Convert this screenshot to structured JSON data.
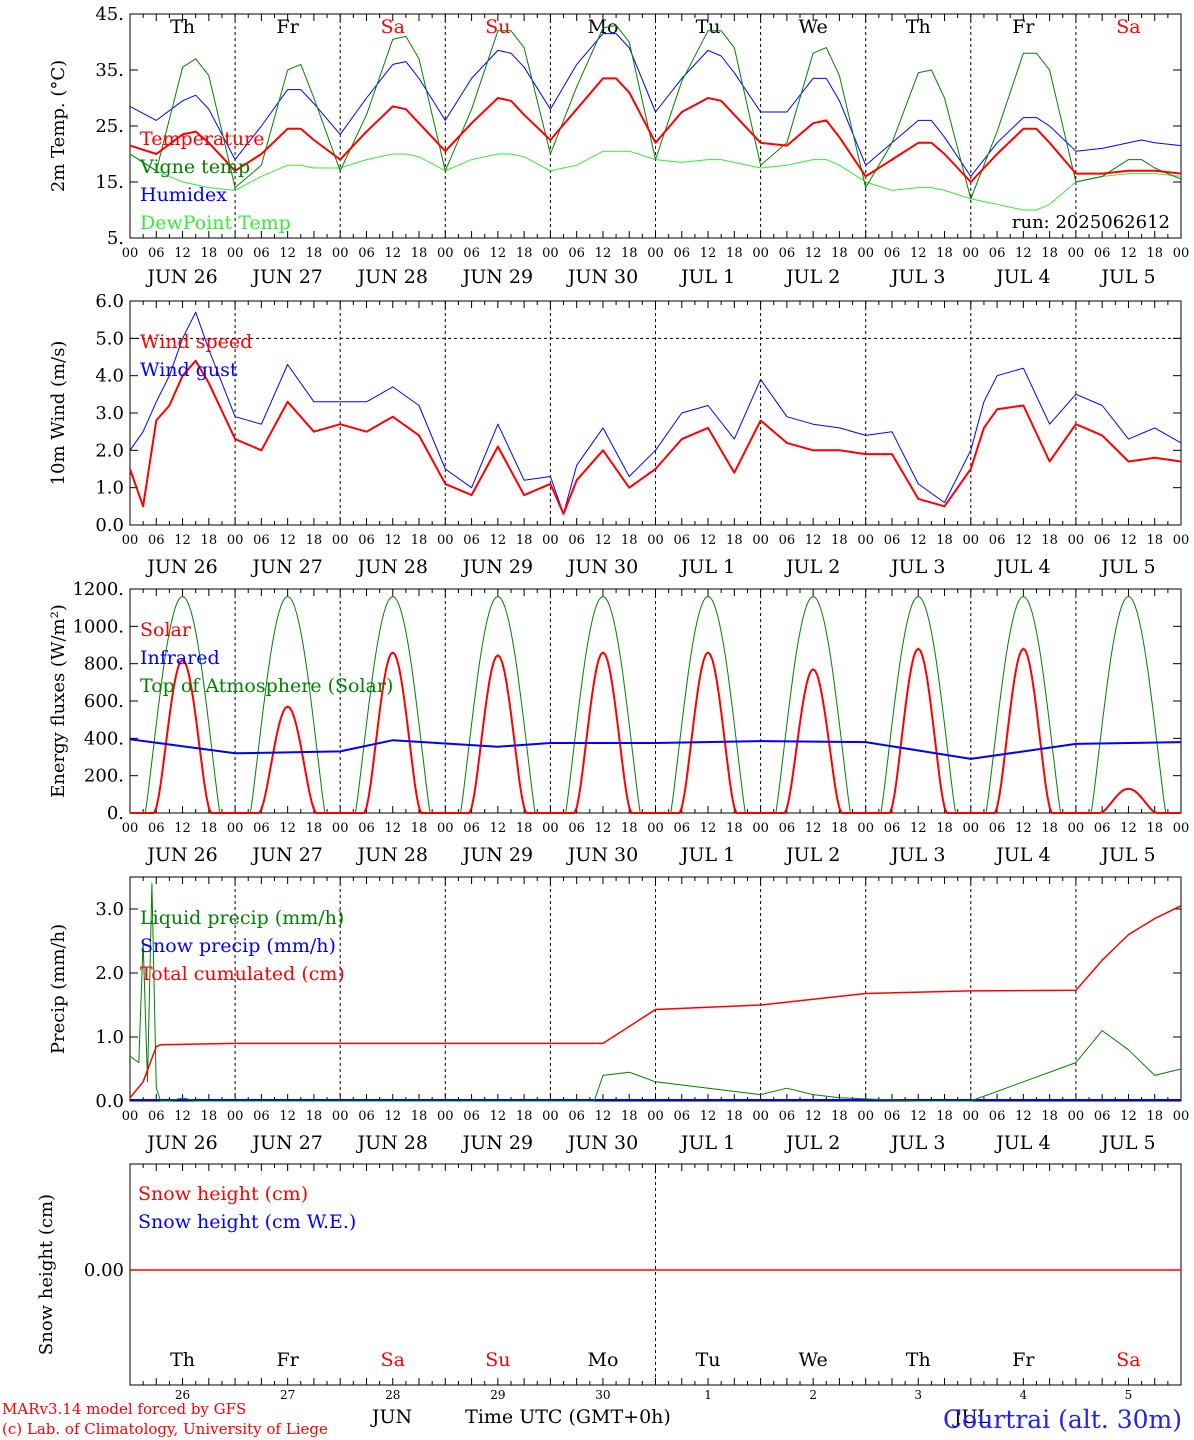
{
  "footer": {
    "credit_line1": "MARv3.14 model forced by GFS",
    "credit_line2": "(c) Lab. of Climatology, University of Liege",
    "month_label": "JUN",
    "month_label2": "JUL",
    "axis_title": "Time UTC (GMT+0h)",
    "station": "Courtrai (alt. 30m)"
  },
  "colors": {
    "red": "#ff0000",
    "green": "#008000",
    "blue": "#0000ff",
    "lightgreen": "#33ee33",
    "sat_sun": "#ff0000",
    "weekday": "#000000"
  },
  "days": {
    "names": [
      "Th",
      "Fr",
      "Sa",
      "Su",
      "Mo",
      "Tu",
      "We",
      "Th",
      "Fr",
      "Sa"
    ],
    "weekend": [
      false,
      false,
      true,
      true,
      false,
      false,
      false,
      false,
      false,
      true
    ],
    "dates": [
      "JUN 26",
      "JUN 27",
      "JUN 28",
      "JUN 29",
      "JUN 30",
      "JUL  1",
      "JUL  2",
      "JUL  3",
      "JUL  4",
      "JUL  5"
    ],
    "numbers": [
      "26",
      "27",
      "28",
      "29",
      "30",
      "1",
      "2",
      "3",
      "4",
      "5"
    ],
    "hour_ticks": [
      "00",
      "06",
      "12",
      "18"
    ]
  },
  "chart_data": [
    {
      "type": "line",
      "id": "temperature",
      "ylabel": "2m Temp. (°C)",
      "ylim": [
        5,
        45
      ],
      "yticks": [
        "5.",
        "15.",
        "25.",
        "35.",
        "45."
      ],
      "ytick_values": [
        5,
        15,
        25,
        35,
        45
      ],
      "annotation": "run: 2025062612",
      "legend": [
        "Temperature",
        "Vigne temp",
        "Humidex",
        "DewPoint Temp"
      ],
      "x_unit": "hours since JUN 26 00 UTC",
      "x": [
        0,
        6,
        12,
        15,
        18,
        24,
        30,
        36,
        39,
        42,
        48,
        54,
        60,
        63,
        66,
        72,
        78,
        84,
        87,
        90,
        96,
        102,
        108,
        111,
        114,
        120,
        126,
        132,
        135,
        138,
        144,
        150,
        156,
        159,
        162,
        168,
        174,
        180,
        183,
        186,
        192,
        198,
        204,
        207,
        210,
        216,
        222,
        228,
        231,
        234,
        240
      ],
      "series": [
        {
          "name": "Temperature",
          "color": "#ff0000",
          "width": 2,
          "values": [
            21.5,
            20,
            23.5,
            24,
            22,
            17,
            20,
            24.5,
            24.5,
            22.5,
            19,
            24,
            28.5,
            28,
            25.5,
            20.5,
            25.5,
            30,
            29.5,
            27,
            22.5,
            28,
            33.5,
            33.5,
            31,
            22,
            27.5,
            30,
            29.5,
            27,
            22,
            21.5,
            25.5,
            26,
            23,
            16,
            19,
            22,
            22,
            20,
            15,
            20,
            24.5,
            24.5,
            22,
            16.5,
            16.5,
            17,
            17,
            17,
            16.5
          ]
        },
        {
          "name": "Vigne temp",
          "color": "#008000",
          "width": 1,
          "values": [
            20,
            17,
            35.5,
            37,
            34,
            14,
            18,
            35,
            36,
            30,
            17,
            27,
            40.5,
            41,
            37,
            17,
            28,
            42,
            42,
            39,
            20,
            32,
            42.5,
            43,
            40,
            19,
            33,
            42,
            42,
            39,
            18,
            22,
            38,
            39,
            34,
            14,
            22,
            34.5,
            35,
            30,
            12,
            24,
            38,
            38,
            35,
            15,
            16,
            19,
            19,
            17.5,
            15.5
          ]
        },
        {
          "name": "Humidex",
          "color": "#0000ff",
          "width": 1,
          "values": [
            28.5,
            26,
            29.5,
            30.5,
            28,
            19,
            25,
            31.5,
            31.5,
            29,
            23.5,
            30,
            36,
            36.5,
            33.5,
            26,
            33.5,
            38.5,
            38,
            35.5,
            28,
            36,
            41.5,
            41.5,
            39,
            27.5,
            33.5,
            38.5,
            37.5,
            34.5,
            27.5,
            27.5,
            33.5,
            33.5,
            29.5,
            18,
            22,
            26,
            26,
            23,
            16,
            22,
            26.5,
            26.5,
            25,
            20.5,
            21,
            22,
            22.5,
            22,
            21.5
          ]
        },
        {
          "name": "DewPoint Temp",
          "color": "#33ee33",
          "width": 1,
          "values": [
            20,
            17,
            15,
            14.5,
            14,
            13.5,
            16,
            18,
            18,
            17.5,
            17.5,
            19,
            20,
            20,
            19.5,
            17,
            19,
            20,
            20,
            19.5,
            17,
            18,
            20.5,
            20.5,
            20.5,
            19,
            18.5,
            19,
            19,
            18.5,
            17.5,
            18,
            19,
            19,
            18,
            15,
            13.5,
            14,
            14,
            13.5,
            12,
            11,
            10,
            10,
            11,
            15,
            16,
            16.5,
            16.5,
            16.5,
            16
          ]
        }
      ]
    },
    {
      "type": "line",
      "id": "wind",
      "ylabel": "10m Wind (m/s)",
      "ylim": [
        0,
        6
      ],
      "yticks": [
        "0.0",
        "1.0",
        "2.0",
        "3.0",
        "4.0",
        "5.0",
        "6.0"
      ],
      "ytick_values": [
        0,
        1,
        2,
        3,
        4,
        5,
        6
      ],
      "reference_line": 5,
      "legend": [
        "Wind speed",
        "Wind gust"
      ],
      "x_unit": "hours since JUN 26 00 UTC",
      "x": [
        0,
        3,
        6,
        9,
        12,
        15,
        18,
        24,
        30,
        36,
        42,
        48,
        54,
        60,
        66,
        72,
        78,
        84,
        90,
        96,
        99,
        102,
        108,
        114,
        120,
        126,
        132,
        138,
        144,
        150,
        156,
        162,
        168,
        174,
        180,
        186,
        192,
        195,
        198,
        204,
        210,
        216,
        222,
        228,
        234,
        240
      ],
      "series": [
        {
          "name": "Wind speed",
          "color": "#ff0000",
          "width": 2,
          "values": [
            1.5,
            0.5,
            2.8,
            3.2,
            4,
            4.4,
            3.8,
            2.3,
            2.0,
            3.3,
            2.5,
            2.7,
            2.5,
            2.9,
            2.4,
            1.1,
            0.8,
            2.1,
            0.8,
            1.1,
            0.3,
            1.2,
            2.0,
            1.0,
            1.5,
            2.3,
            2.6,
            1.4,
            2.8,
            2.2,
            2.0,
            2.0,
            1.9,
            1.9,
            0.7,
            0.5,
            1.5,
            2.6,
            3.1,
            3.2,
            1.7,
            2.7,
            2.4,
            1.7,
            1.8,
            1.7
          ]
        },
        {
          "name": "Wind gust",
          "color": "#0000ff",
          "width": 1,
          "values": [
            2.0,
            2.5,
            3.3,
            4.0,
            5.0,
            5.7,
            4.7,
            2.9,
            2.7,
            4.3,
            3.3,
            3.3,
            3.3,
            3.7,
            3.2,
            1.5,
            1.0,
            2.7,
            1.2,
            1.3,
            0.3,
            1.6,
            2.6,
            1.3,
            2.0,
            3.0,
            3.2,
            2.3,
            3.9,
            2.9,
            2.7,
            2.6,
            2.4,
            2.5,
            1.1,
            0.6,
            2.0,
            3.3,
            4.0,
            4.2,
            2.7,
            3.5,
            3.2,
            2.3,
            2.6,
            2.2
          ]
        }
      ]
    },
    {
      "type": "line",
      "id": "energy",
      "ylabel": "Energy fluxes (W/m²)",
      "ylim": [
        0,
        1200
      ],
      "yticks": [
        "0.",
        "200.",
        "400.",
        "600.",
        "800.",
        "1000.",
        "1200."
      ],
      "ytick_values": [
        0,
        200,
        400,
        600,
        800,
        1000,
        1200
      ],
      "legend": [
        "Solar",
        "Infrared",
        "Top of Atmosphere (Solar)"
      ],
      "toa_peak": 1160,
      "solar_peaks": [
        820,
        570,
        860,
        845,
        860,
        860,
        770,
        880,
        880,
        130
      ],
      "infrared_x": [
        0,
        24,
        48,
        60,
        84,
        96,
        120,
        144,
        168,
        192,
        216,
        240
      ],
      "infrared_values": [
        395,
        320,
        330,
        390,
        355,
        375,
        375,
        385,
        380,
        290,
        370,
        380
      ]
    },
    {
      "type": "line",
      "id": "precip",
      "ylabel": "Precip (mm/h)",
      "ylim": [
        0,
        3.5
      ],
      "yticks": [
        "0.0",
        "1.0",
        "2.0",
        "3.0"
      ],
      "ytick_values": [
        0,
        1,
        2,
        3
      ],
      "legend": [
        "Liquid precip (mm/h)",
        "Snow precip (mm/h)",
        "Total cumulated (cm)"
      ],
      "x_unit": "hours since JUN 26 00 UTC",
      "liquid_x": [
        0,
        2,
        3,
        4,
        5,
        6,
        6.5,
        7,
        8,
        9,
        12,
        15,
        18,
        24,
        106,
        108,
        114,
        120,
        144,
        150,
        156,
        162,
        180,
        192,
        216,
        222,
        228,
        234,
        240
      ],
      "liquid_values": [
        0.7,
        0.6,
        2.5,
        0.3,
        3.4,
        0.2,
        0.1,
        0,
        0,
        0,
        0.05,
        0,
        0,
        0,
        0,
        0.4,
        0.45,
        0.3,
        0.1,
        0.2,
        0.1,
        0.05,
        0,
        0,
        0.6,
        1.1,
        0.8,
        0.4,
        0.5
      ],
      "cumulated_x": [
        0,
        3,
        6,
        7,
        24,
        48,
        96,
        108,
        120,
        144,
        168,
        192,
        216,
        222,
        228,
        234,
        240
      ],
      "cumulated_values": [
        0.05,
        0.3,
        0.85,
        0.88,
        0.9,
        0.9,
        0.9,
        0.9,
        1.43,
        1.5,
        1.68,
        1.72,
        1.73,
        2.2,
        2.6,
        2.85,
        3.05
      ]
    },
    {
      "type": "line",
      "id": "snow",
      "ylabel": "Snow height (cm)",
      "yticks": [
        "0.00"
      ],
      "ytick_values": [
        0
      ],
      "legend": [
        "Snow height (cm)",
        "Snow height (cm W.E.)"
      ],
      "value": 0
    }
  ]
}
